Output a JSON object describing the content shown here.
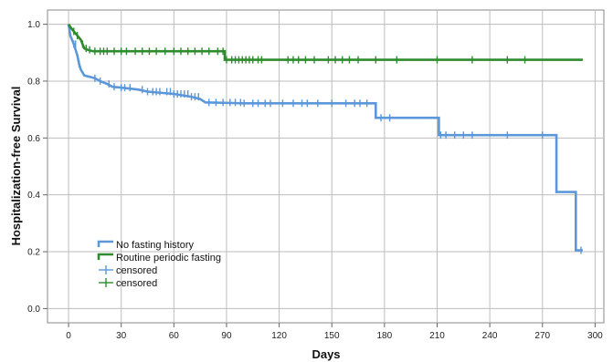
{
  "chart_data": {
    "type": "line",
    "title": "",
    "xlabel": "Days",
    "ylabel": "Hospitalization-free Survival",
    "xlim": [
      -12,
      305
    ],
    "ylim": [
      -0.05,
      1.05
    ],
    "x_ticks": [
      0,
      30,
      60,
      90,
      120,
      150,
      180,
      210,
      240,
      270,
      300
    ],
    "y_ticks": [
      0.0,
      0.2,
      0.4,
      0.6,
      0.8,
      1.0
    ],
    "y_tick_labels": [
      "0.0",
      "0.2",
      "0.4",
      "0.6",
      "0.8",
      "1.0"
    ],
    "grid": true,
    "legend_position": "bottom-left",
    "legend": [
      {
        "label": "No fasting history",
        "kind": "line",
        "color": "#5b97d9"
      },
      {
        "label": "Routine periodic fasting",
        "kind": "line",
        "color": "#2e8b2e"
      },
      {
        "label": "censored",
        "kind": "marker",
        "color": "#5b97d9"
      },
      {
        "label": "censored",
        "kind": "marker",
        "color": "#2e8b2e"
      }
    ],
    "series": [
      {
        "name": "No fasting history",
        "color": "#5b97d9",
        "step": [
          [
            0,
            1.0
          ],
          [
            1,
            0.96
          ],
          [
            3,
            0.93
          ],
          [
            5,
            0.89
          ],
          [
            6,
            0.86
          ],
          [
            7,
            0.84
          ],
          [
            8,
            0.83
          ],
          [
            9,
            0.82
          ],
          [
            12,
            0.815
          ],
          [
            15,
            0.81
          ],
          [
            18,
            0.8
          ],
          [
            22,
            0.79
          ],
          [
            25,
            0.78
          ],
          [
            30,
            0.777
          ],
          [
            40,
            0.77
          ],
          [
            45,
            0.763
          ],
          [
            60,
            0.755
          ],
          [
            70,
            0.745
          ],
          [
            75,
            0.737
          ],
          [
            78,
            0.725
          ],
          [
            100,
            0.722
          ],
          [
            175,
            0.722
          ],
          [
            175,
            0.671
          ],
          [
            211,
            0.671
          ],
          [
            211,
            0.61
          ],
          [
            278,
            0.61
          ],
          [
            278,
            0.41
          ],
          [
            289,
            0.41
          ],
          [
            289,
            0.205
          ],
          [
            293,
            0.205
          ]
        ],
        "censored": [
          3,
          4,
          6,
          15,
          18,
          23,
          26,
          30,
          32,
          35,
          42,
          45,
          48,
          50,
          52,
          56,
          58,
          60,
          62,
          64,
          66,
          68,
          70,
          72,
          74,
          80,
          84,
          88,
          92,
          95,
          98,
          100,
          105,
          108,
          112,
          115,
          122,
          128,
          133,
          136,
          142,
          150,
          158,
          163,
          166,
          170,
          178,
          183,
          212,
          215,
          220,
          225,
          230,
          250,
          270,
          292
        ]
      },
      {
        "name": "Routine periodic fasting",
        "color": "#2e8b2e",
        "step": [
          [
            0,
            1.0
          ],
          [
            1,
            0.99
          ],
          [
            3,
            0.975
          ],
          [
            5,
            0.96
          ],
          [
            7,
            0.945
          ],
          [
            8,
            0.93
          ],
          [
            9,
            0.915
          ],
          [
            11,
            0.91
          ],
          [
            14,
            0.905
          ],
          [
            89,
            0.905
          ],
          [
            89,
            0.875
          ],
          [
            293,
            0.875
          ]
        ],
        "censored": [
          3,
          5,
          8,
          10,
          12,
          15,
          18,
          20,
          22,
          26,
          30,
          33,
          38,
          42,
          46,
          50,
          55,
          60,
          64,
          68,
          72,
          76,
          80,
          85,
          88,
          90,
          93,
          95,
          97,
          99,
          101,
          103,
          105,
          108,
          110,
          125,
          128,
          131,
          135,
          140,
          148,
          152,
          156,
          160,
          165,
          175,
          187,
          210,
          230,
          250,
          260
        ]
      }
    ]
  }
}
